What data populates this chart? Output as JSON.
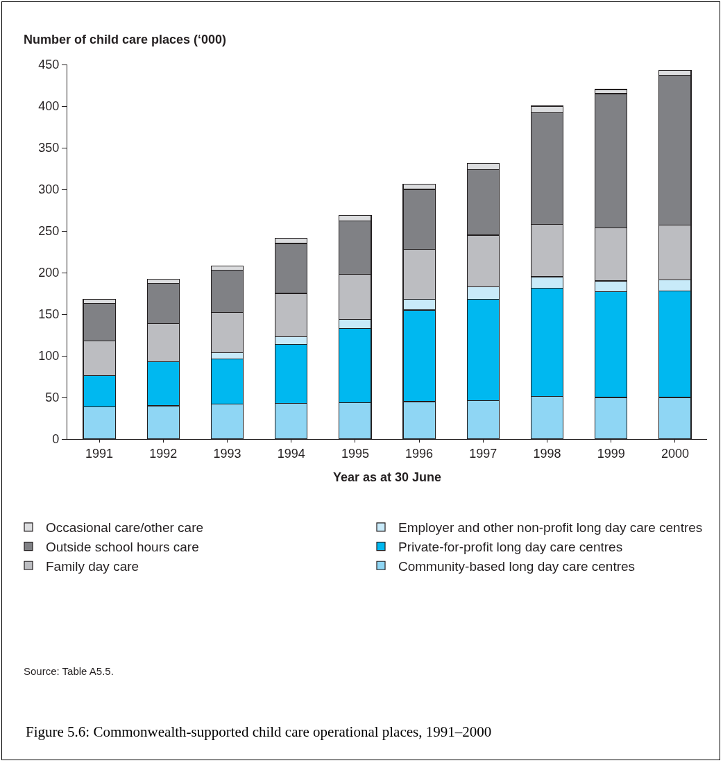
{
  "chart_data": {
    "type": "bar",
    "stacked": true,
    "title": "Figure 5.6: Commonwealth-supported child care operational places, 1991–2000",
    "ylabel": "Number of child care places (‘000)",
    "xlabel": "Year as at 30 June",
    "categories": [
      "1991",
      "1992",
      "1993",
      "1994",
      "1995",
      "1996",
      "1997",
      "1998",
      "1999",
      "2000"
    ],
    "series": [
      {
        "name": "Community-based long day care centres",
        "color": "#8fd6f4",
        "values": [
          39,
          40,
          42,
          43,
          44,
          45,
          46,
          51,
          50,
          50
        ]
      },
      {
        "name": "Private-for-profit long day care centres",
        "color": "#00b8f0",
        "values": [
          37,
          53,
          54,
          71,
          89,
          110,
          122,
          130,
          127,
          128
        ]
      },
      {
        "name": "Employer and other non-profit long day care centres",
        "color": "#c8eaf9",
        "values": [
          0,
          0,
          8,
          9,
          11,
          13,
          15,
          14,
          13,
          13
        ]
      },
      {
        "name": "Family day care",
        "color": "#bcbdc1",
        "values": [
          42,
          46,
          48,
          52,
          54,
          60,
          62,
          63,
          64,
          66
        ]
      },
      {
        "name": "Outside school hours care",
        "color": "#808185",
        "values": [
          45,
          48,
          51,
          60,
          64,
          72,
          79,
          134,
          161,
          180
        ]
      },
      {
        "name": "Occasional care/other care",
        "color": "#dcdddf",
        "values": [
          5,
          5,
          5,
          6,
          7,
          6,
          7,
          8,
          5,
          6
        ]
      }
    ],
    "ylim": [
      0,
      450
    ],
    "yticks": [
      0,
      50,
      100,
      150,
      200,
      250,
      300,
      350,
      400,
      450
    ],
    "grid": false,
    "legend": "bottom",
    "annotations": [
      "Source: Table A5.5."
    ]
  }
}
